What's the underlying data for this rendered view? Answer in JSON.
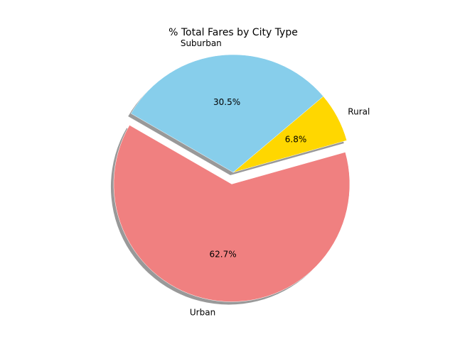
{
  "chart_data": {
    "type": "pie",
    "title": "% Total Fares by City Type",
    "slices": [
      {
        "label": "Urban",
        "value": 62.7,
        "pct_label": "62.7%",
        "color": "#f08080",
        "exploded": true
      },
      {
        "label": "Rural",
        "value": 6.8,
        "pct_label": "6.8%",
        "color": "#ffd700",
        "exploded": false
      },
      {
        "label": "Suburban",
        "value": 30.5,
        "pct_label": "30.5%",
        "color": "#87ceeb",
        "exploded": false
      }
    ],
    "start_angle_deg": 150,
    "direction": "counterclockwise",
    "shadow": true,
    "legend": "none"
  }
}
